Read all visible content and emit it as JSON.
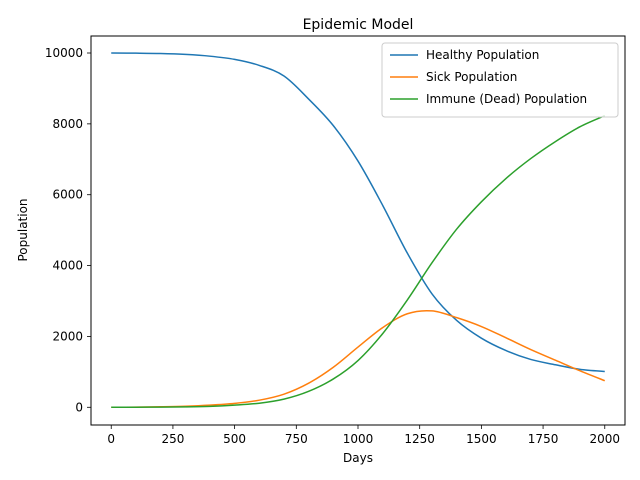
{
  "chart_data": {
    "type": "line",
    "title": "Epidemic Model",
    "xlabel": "Days",
    "ylabel": "Population",
    "xlim": [
      -82,
      2082
    ],
    "ylim": [
      -500,
      10480
    ],
    "xticks": [
      0,
      250,
      500,
      750,
      1000,
      1250,
      1500,
      1750,
      2000
    ],
    "yticks": [
      0,
      2000,
      4000,
      6000,
      8000,
      10000
    ],
    "grid": false,
    "legend_position": "top-right",
    "x": [
      0,
      100,
      200,
      300,
      400,
      500,
      600,
      700,
      800,
      900,
      1000,
      1100,
      1200,
      1300,
      1400,
      1500,
      1600,
      1700,
      1800,
      1900,
      2000
    ],
    "series": [
      {
        "name": "Healthy Population",
        "color": "#1f77b4",
        "values": [
          10000,
          9995,
          9985,
          9960,
          9910,
          9820,
          9650,
          9350,
          8700,
          7950,
          6950,
          5700,
          4350,
          3200,
          2450,
          1950,
          1600,
          1350,
          1200,
          1070,
          1010
        ]
      },
      {
        "name": "Sick Population",
        "color": "#ff7f0e",
        "values": [
          0,
          5,
          15,
          30,
          60,
          110,
          200,
          370,
          680,
          1130,
          1700,
          2250,
          2640,
          2720,
          2530,
          2280,
          1960,
          1630,
          1330,
          1030,
          750
        ]
      },
      {
        "name": "Immune (Dead) Population",
        "color": "#2ca02c",
        "values": [
          0,
          2,
          5,
          10,
          25,
          60,
          115,
          230,
          450,
          800,
          1320,
          2080,
          3030,
          4080,
          5030,
          5800,
          6460,
          7020,
          7500,
          7920,
          8230
        ]
      }
    ]
  }
}
